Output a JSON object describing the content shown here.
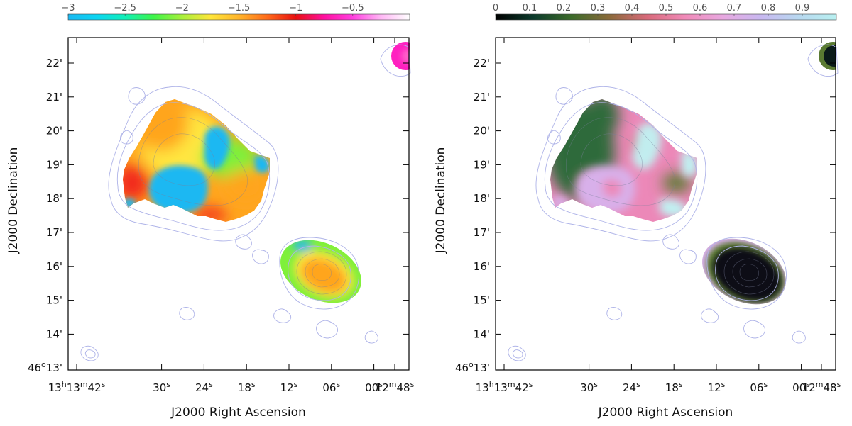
{
  "panels": [
    {
      "id": "left",
      "colorbar": {
        "labels": [
          "−3",
          "−2.5",
          "−2",
          "−1.5",
          "−1",
          "−0.5"
        ],
        "stops": [
          "#1ab8f2",
          "#0cd5f2",
          "#10f0b8",
          "#3df54a",
          "#a8f03a",
          "#ffe63a",
          "#ffb42a",
          "#ff6a1a",
          "#e81010",
          "#ff10a0",
          "#ff40e0",
          "#ffb8f5",
          "#ffffff"
        ]
      },
      "map_colors": {
        "steep": "#1ab8f2",
        "mid": "#7ef03a",
        "yellow": "#ffe640",
        "orange": "#ffa51f",
        "red": "#f22a1a",
        "magenta": "#ff20c0"
      }
    },
    {
      "id": "right",
      "colorbar": {
        "labels": [
          "0",
          "0.1",
          "0.2",
          "0.3",
          "0.4",
          "0.5",
          "0.6",
          "0.7",
          "0.8",
          "0.9"
        ],
        "stops": [
          "#000000",
          "#0c3b2c",
          "#3c6b2a",
          "#8a6a3a",
          "#d86a7a",
          "#f08ab8",
          "#e8a8e0",
          "#c8b8f0",
          "#b8d8f0",
          "#b8f0f0"
        ]
      },
      "map_colors": {
        "dark": "#0a0a14",
        "green": "#2e6b3a",
        "olive": "#5a7a32",
        "pink": "#ec88b8",
        "lavender": "#d8b0ea",
        "cyan": "#c0f2f2"
      }
    }
  ],
  "axes": {
    "xlabel": "J2000 Right Ascension",
    "ylabel": "J2000 Declination",
    "x_ticks": [
      {
        "h": "13",
        "m": "13",
        "s": "42",
        "full": true
      },
      {
        "s": "30"
      },
      {
        "s": "24"
      },
      {
        "s": "18"
      },
      {
        "s": "12"
      },
      {
        "s": "06"
      },
      {
        "s": "00"
      },
      {
        "m": "12",
        "s": "48",
        "minute": true
      }
    ],
    "y_ticks": [
      "22'",
      "21'",
      "20'",
      "19'",
      "18'",
      "17'",
      "16'",
      "15'",
      "14'"
    ],
    "y_first": {
      "deg": "46",
      "min": "13'"
    }
  }
}
